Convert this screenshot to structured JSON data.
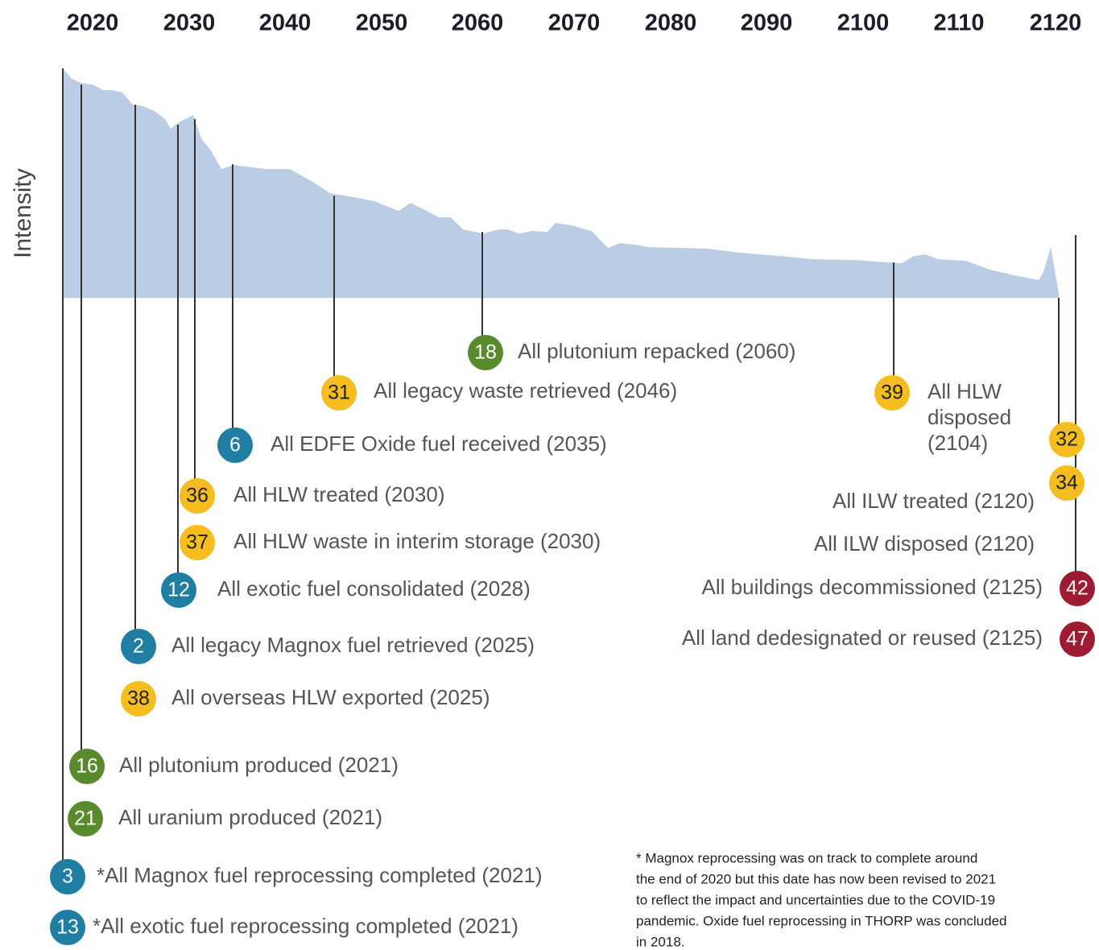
{
  "header": {
    "years": [
      "2020",
      "2030",
      "2040",
      "2050",
      "2060",
      "2070",
      "2080",
      "2090",
      "2100",
      "2110",
      "2120"
    ]
  },
  "y_axis_label": "Intensity",
  "milestones": [
    {
      "number": "18",
      "label": "All plutonium repacked (2060)",
      "color": "#5a8a2e"
    },
    {
      "number": "31",
      "label": "All legacy waste retrieved (2046)",
      "color": "#f5bd1f"
    },
    {
      "number": "39",
      "label_lines": [
        "All HLW",
        "disposed",
        "(2104)"
      ],
      "color": "#f5bd1f"
    },
    {
      "number": "6",
      "label": "All EDFE Oxide fuel received (2035)",
      "color": "#1f7ea1"
    },
    {
      "number": "32",
      "label": "All ILW treated (2120)",
      "color": "#f5bd1f"
    },
    {
      "number": "34",
      "label": "All ILW disposed (2120)",
      "color": "#f5bd1f"
    },
    {
      "number": "36",
      "label": "All HLW treated (2030)",
      "color": "#f5bd1f"
    },
    {
      "number": "37",
      "label": "All HLW waste in interim storage (2030)",
      "color": "#f5bd1f"
    },
    {
      "number": "12",
      "label": "All exotic fuel consolidated (2028)",
      "color": "#1f7ea1"
    },
    {
      "number": "42",
      "label": "All buildings decommissioned (2125)",
      "color": "#9e1b32"
    },
    {
      "number": "47",
      "label": "All land dedesignated or reused  (2125)",
      "color": "#9e1b32"
    },
    {
      "number": "2",
      "label": "All legacy Magnox fuel retrieved (2025)",
      "color": "#1f7ea1"
    },
    {
      "number": "38",
      "label": "All overseas HLW exported (2025)",
      "color": "#f5bd1f"
    },
    {
      "number": "16",
      "label": "All plutonium produced (2021)",
      "color": "#5a8a2e"
    },
    {
      "number": "21",
      "label": "All uranium produced (2021)",
      "color": "#5a8a2e"
    },
    {
      "number": "3",
      "label": "*All Magnox fuel reprocessing completed (2021)",
      "color": "#1f7ea1"
    },
    {
      "number": "13",
      "label": "*All exotic fuel reprocessing completed (2021)",
      "color": "#1f7ea1"
    }
  ],
  "footnote": [
    "* Magnox reprocessing was on track to complete around",
    "the end of 2020 but this date has now been revised to 2021",
    "to reflect the impact and uncertainties due to the COVID-19",
    "pandemic. Oxide fuel reprocessing in THORP was concluded",
    "in 2018."
  ]
}
